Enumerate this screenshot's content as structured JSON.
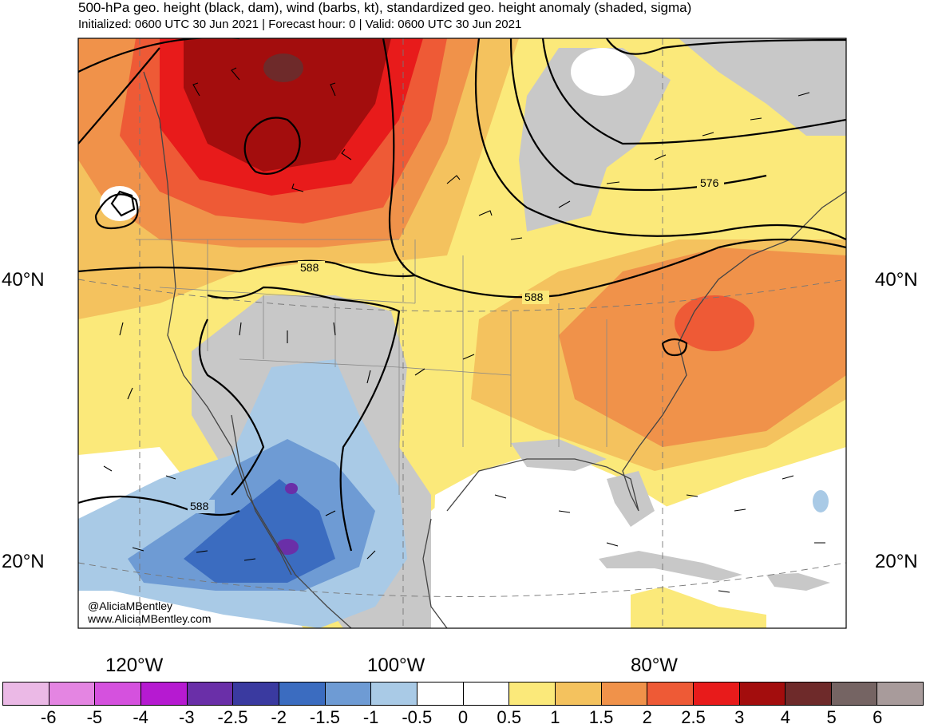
{
  "header": {
    "title": "500-hPa geo. height (black, dam), wind (barbs, kt), standardized geo. height anomaly (shaded, sigma)",
    "subtitle": "Initialized: 0600 UTC 30 Jun 2021 | Forecast hour: 0 | Valid: 0600 UTC 30 Jun 2021"
  },
  "map": {
    "lat_labels": [
      "40°N",
      "20°N"
    ],
    "lon_labels": [
      "120°W",
      "100°W",
      "80°W"
    ],
    "contour_labels": [
      "576",
      "588",
      "588",
      "588"
    ],
    "credit_line1": "@AliciaMBentley",
    "credit_line2": "www.AliciaMBentley.com"
  },
  "colorbar": {
    "ticks": [
      "-6",
      "-5",
      "-4",
      "-3",
      "-2.5",
      "-2",
      "-1.5",
      "-1",
      "-0.5",
      "0",
      "0.5",
      "1",
      "1.5",
      "2",
      "2.5",
      "3",
      "4",
      "5",
      "6"
    ],
    "colors": [
      "#ebb9e6",
      "#e485e2",
      "#d551de",
      "#b61ad1",
      "#6a2fa8",
      "#3a3aa0",
      "#3b6cc0",
      "#6e9bd4",
      "#a9cae6",
      "#ffffff",
      "#ffffff",
      "#fbe97a",
      "#f4c25e",
      "#f0924a",
      "#ee5a36",
      "#e81b1b",
      "#a30d0d",
      "#6e2a2a",
      "#756463",
      "#a89b9b"
    ]
  }
}
